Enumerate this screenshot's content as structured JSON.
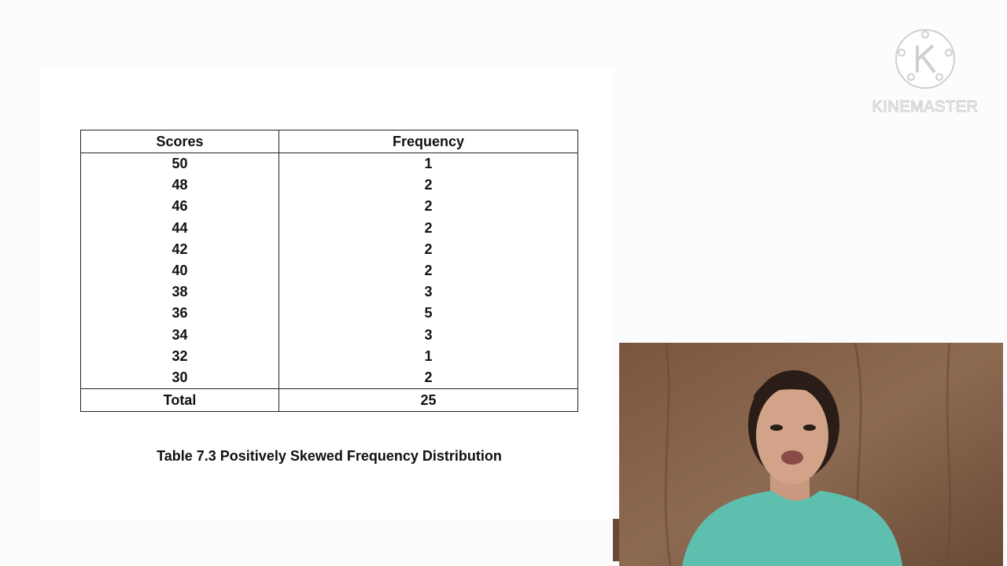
{
  "table": {
    "header": [
      "Scores",
      "Frequency"
    ],
    "rows": [
      [
        "50",
        "1"
      ],
      [
        "48",
        "2"
      ],
      [
        "46",
        "2"
      ],
      [
        "44",
        "2"
      ],
      [
        "42",
        "2"
      ],
      [
        "40",
        "2"
      ],
      [
        "38",
        "3"
      ],
      [
        "36",
        "5"
      ],
      [
        "34",
        "3"
      ],
      [
        "32",
        "1"
      ],
      [
        "30",
        "2"
      ]
    ],
    "total": [
      "Total",
      "25"
    ]
  },
  "caption": "Table 7.3 Positively Skewed Frequency Distribution",
  "watermark": "KINEMASTER"
}
